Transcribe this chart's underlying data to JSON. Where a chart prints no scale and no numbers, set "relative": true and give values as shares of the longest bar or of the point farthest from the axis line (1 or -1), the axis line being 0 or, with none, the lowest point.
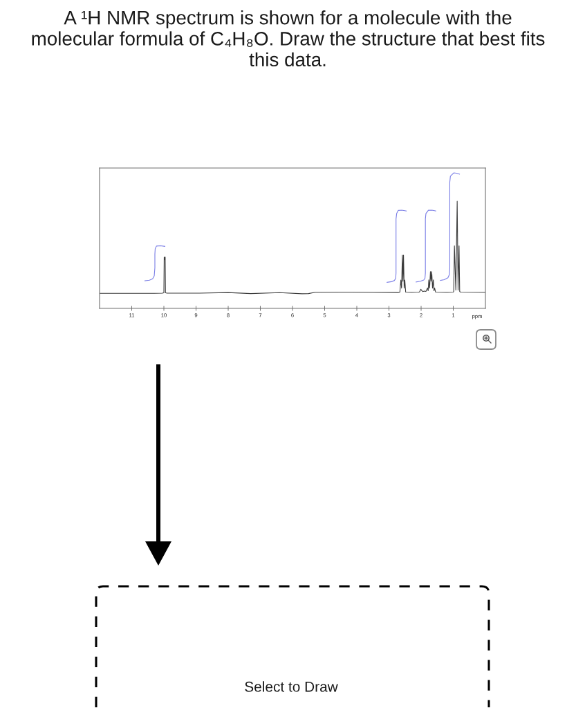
{
  "chart_data": {
    "type": "line",
    "title": "A ¹H NMR spectrum is shown for a molecule with the molecular formula of C₄H₈O. Draw the structure that best fits this data.",
    "xlabel": "ppm",
    "relative": true,
    "xlim": [
      12,
      0
    ],
    "xticks": [
      11,
      10,
      9,
      8,
      7,
      6,
      5,
      4,
      3,
      2,
      1
    ],
    "annotations": [
      "Select to Draw"
    ],
    "series": [
      {
        "color": "#3c3c3c",
        "x": [
          12.0,
          10.3,
          10.05,
          10.0,
          9.99,
          9.975,
          9.96,
          9.95,
          9.9,
          8.9,
          8.0,
          7.3,
          6.4,
          5.7,
          5.5,
          5.3,
          4.5,
          3.5,
          2.8,
          2.7,
          2.66,
          2.63,
          2.607,
          2.583,
          2.565,
          2.547,
          2.527,
          2.507,
          2.48,
          2.3,
          2.1,
          2.05,
          2.01,
          1.98,
          1.95,
          1.9,
          1.85,
          1.8,
          1.78,
          1.76,
          1.735,
          1.71,
          1.69,
          1.67,
          1.645,
          1.62,
          1.6,
          1.58,
          1.55,
          1.2,
          1.0,
          0.985,
          0.964,
          0.92,
          0.878,
          0.85,
          0.82,
          0.8,
          0.78,
          0.0
        ],
        "values": [
          0.111,
          0.111,
          0.112,
          0.115,
          0.379,
          0.36,
          0.379,
          0.115,
          0.112,
          0.112,
          0.117,
          0.109,
          0.116,
          0.108,
          0.109,
          0.119,
          0.12,
          0.119,
          0.118,
          0.117,
          0.12,
          0.209,
          0.15,
          0.393,
          0.2,
          0.393,
          0.15,
          0.209,
          0.12,
          0.119,
          0.12,
          0.121,
          0.141,
          0.132,
          0.124,
          0.128,
          0.125,
          0.15,
          0.13,
          0.21,
          0.15,
          0.272,
          0.2,
          0.272,
          0.15,
          0.21,
          0.13,
          0.15,
          0.12,
          0.119,
          0.12,
          0.125,
          0.461,
          0.135,
          0.791,
          0.135,
          0.461,
          0.125,
          0.12,
          0.119
        ]
      },
      {
        "color": "#7a7ee6",
        "x": [
          10.59,
          10.45,
          10.35,
          10.3,
          10.28,
          10.28,
          10.27,
          10.23,
          10.1,
          9.97
        ],
        "values": [
          0.204,
          0.208,
          0.218,
          0.24,
          0.3,
          0.4,
          0.44,
          0.46,
          0.462,
          0.458
        ]
      },
      {
        "color": "#7a7ee6",
        "x": [
          3.06,
          2.92,
          2.83,
          2.79,
          2.78,
          2.78,
          2.76,
          2.71,
          2.6,
          2.46
        ],
        "values": [
          0.192,
          0.197,
          0.206,
          0.222,
          0.26,
          0.66,
          0.7,
          0.723,
          0.725,
          0.719
        ]
      },
      {
        "color": "#7a7ee6",
        "x": [
          2.155,
          2.02,
          1.918,
          1.88,
          1.867,
          1.867,
          1.85,
          1.774,
          1.66,
          1.544
        ],
        "values": [
          0.195,
          0.2,
          0.209,
          0.222,
          0.26,
          0.66,
          0.7,
          0.724,
          0.725,
          0.719
        ]
      },
      {
        "color": "#7a7ee6",
        "x": [
          1.4,
          1.28,
          1.166,
          1.12,
          1.108,
          1.108,
          1.09,
          0.986,
          0.9,
          0.806
        ],
        "values": [
          0.206,
          0.212,
          0.226,
          0.25,
          0.3,
          0.93,
          0.975,
          1.0,
          0.998,
          0.991
        ]
      }
    ]
  }
}
